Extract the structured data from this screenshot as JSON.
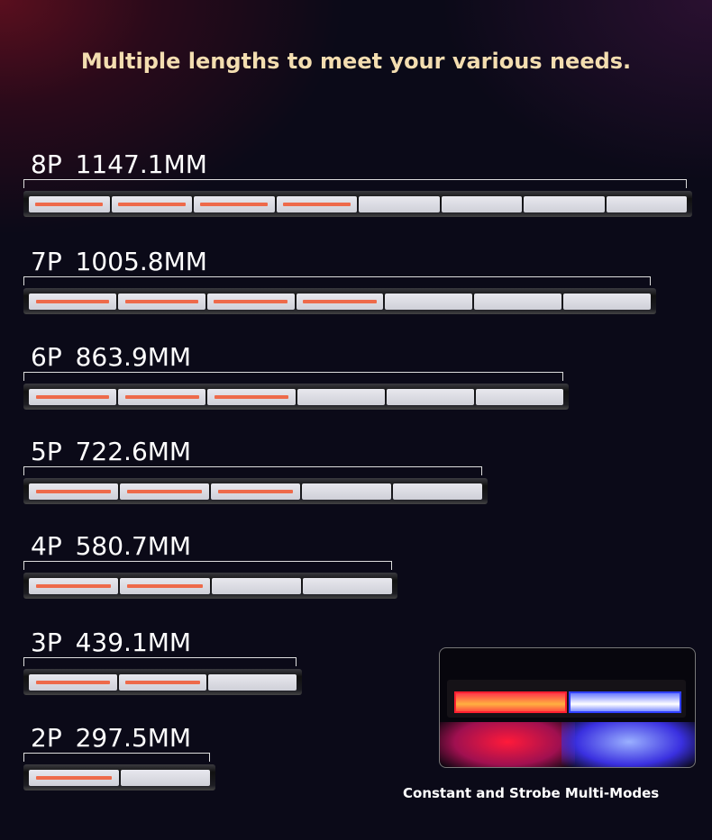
{
  "headline": "Multiple lengths to meet your various needs.",
  "products": [
    {
      "model": "8P",
      "length": "1147.1MM",
      "segments": 8,
      "amber_segments": 4
    },
    {
      "model": "7P",
      "length": "1005.8MM",
      "segments": 7,
      "amber_segments": 4
    },
    {
      "model": "6P",
      "length": "863.9MM",
      "segments": 6,
      "amber_segments": 3
    },
    {
      "model": "5P",
      "length": "722.6MM",
      "segments": 5,
      "amber_segments": 3
    },
    {
      "model": "4P",
      "length": "580.7MM",
      "segments": 4,
      "amber_segments": 2
    },
    {
      "model": "3P",
      "length": "439.1MM",
      "segments": 3,
      "amber_segments": 2
    },
    {
      "model": "2P",
      "length": "297.5MM",
      "segments": 2,
      "amber_segments": 1
    }
  ],
  "photo": {
    "colors": {
      "left": "#ff2030",
      "right": "#3040ff"
    }
  },
  "caption": "Constant and Strobe Multi-Modes"
}
